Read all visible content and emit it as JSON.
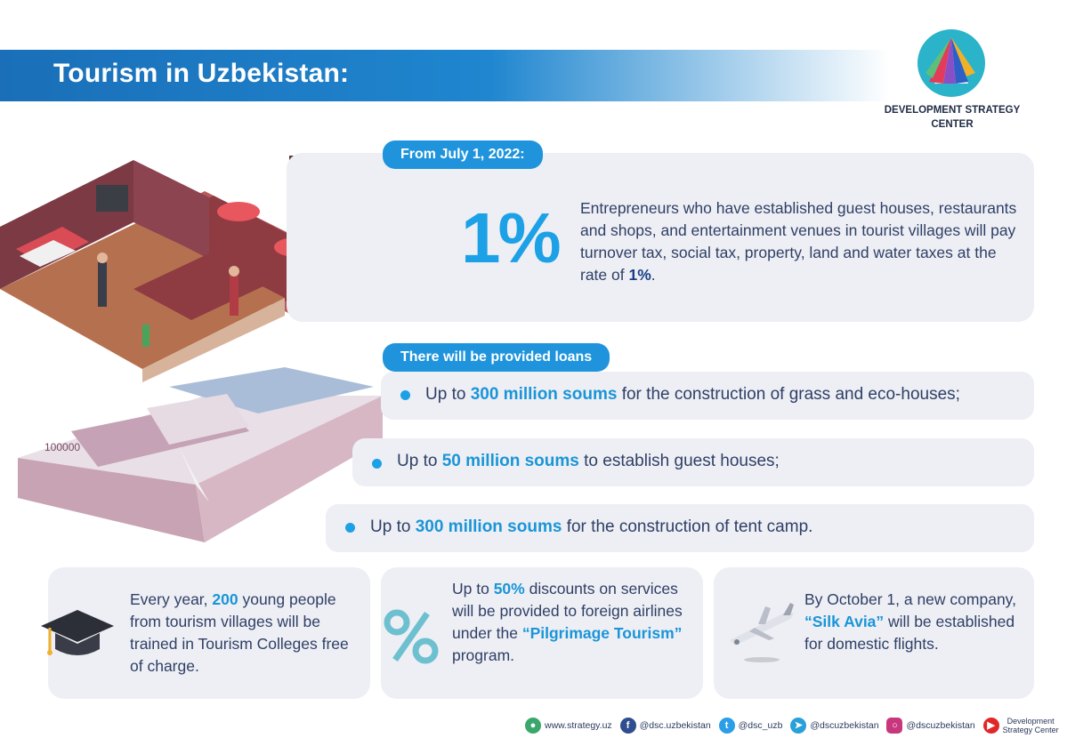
{
  "header": {
    "title": "Tourism in Uzbekistan:"
  },
  "logo": {
    "org_name": "DEVELOPMENT STRATEGY CENTER"
  },
  "tax": {
    "date_pill": "From July 1, 2022:",
    "big_figure": "1%",
    "text_main": "Entrepreneurs who have established guest houses, restaurants and shops, and entertainment venues in tourist villages will pay turnover tax, social tax, property, land and water taxes at the rate of ",
    "text_highlight": "1%",
    "text_end": "."
  },
  "loans": {
    "pill": "There will be provided loans",
    "items": [
      {
        "pre": "Up to ",
        "amount": "300 million soums",
        "post": " for the construction of grass and eco-houses;"
      },
      {
        "pre": "Up to ",
        "amount": "50 million soums",
        "post": " to establish guest houses;"
      },
      {
        "pre": "Up to ",
        "amount": "300 million soums",
        "post": " for the construction of tent camp."
      }
    ]
  },
  "cards": [
    {
      "pre": "Every year, ",
      "hl": "200",
      "post": " young people from tourism villages will be trained in Tourism Colleges free of charge."
    },
    {
      "pre": "Up to ",
      "hl": "50%",
      "mid": " discounts on services will be provided to foreign airlines under the ",
      "hl2": "“Pilgrimage Tourism”",
      "post": " program."
    },
    {
      "pre": "By October 1, a new company, ",
      "hl": "“Silk Avia”",
      "post": " will be established for domestic flights."
    }
  ],
  "footer": {
    "website": "www.strategy.uz",
    "facebook": "@dsc.uzbekistan",
    "twitter": "@dsc_uzb",
    "telegram": "@dscuzbekistan",
    "instagram": "@dscuzbekistan",
    "youtube_line1": "Development",
    "youtube_line2": "Strategy Center"
  },
  "colors": {
    "accent": "#1da1e6",
    "header": "#1a6fb8",
    "panel": "#eeeff4",
    "text": "#2e3f66"
  },
  "icons": [
    "graduation-cap-icon",
    "percent-icon",
    "airplane-icon",
    "globe-icon",
    "facebook-icon",
    "twitter-icon",
    "telegram-icon",
    "instagram-icon",
    "youtube-icon"
  ]
}
